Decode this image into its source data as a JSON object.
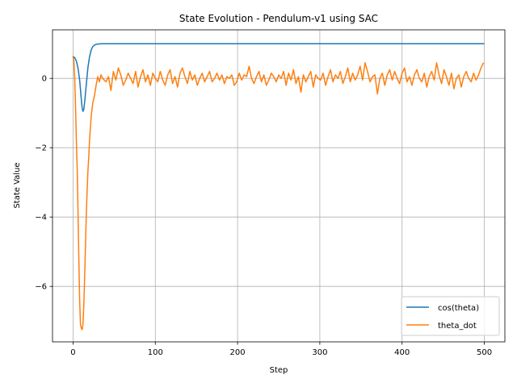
{
  "chart_data": {
    "type": "line",
    "title": "State Evolution - Pendulum-v1 using SAC",
    "xlabel": "Step",
    "ylabel": "State Value",
    "xlim": [
      -25,
      525
    ],
    "ylim": [
      -7.6,
      1.4
    ],
    "xticks": [
      0,
      100,
      200,
      300,
      400,
      500
    ],
    "yticks": [
      -6,
      -4,
      -2,
      0
    ],
    "ytick_labels": [
      "−6",
      "−4",
      "−2",
      "0"
    ],
    "grid": true,
    "legend": "lower-right",
    "series": [
      {
        "name": "cos(theta)",
        "color": "#1f77b4",
        "x": [
          0,
          2,
          4,
          6,
          8,
          10,
          11,
          12,
          13,
          14,
          16,
          18,
          20,
          22,
          24,
          26,
          28,
          30,
          35,
          40,
          50,
          100,
          200,
          300,
          400,
          500
        ],
        "y": [
          0.62,
          0.6,
          0.5,
          0.3,
          -0.05,
          -0.6,
          -0.85,
          -0.95,
          -0.9,
          -0.7,
          -0.2,
          0.3,
          0.62,
          0.82,
          0.92,
          0.96,
          0.98,
          0.99,
          1.0,
          1.0,
          1.0,
          1.0,
          1.0,
          1.0,
          1.0,
          1.0
        ]
      },
      {
        "name": "theta_dot",
        "color": "#ff7f0e",
        "x": [
          0,
          1,
          2,
          3,
          4,
          5,
          6,
          7,
          8,
          9,
          10,
          11,
          12,
          13,
          14,
          15,
          16,
          17,
          18,
          19,
          20,
          22,
          24,
          26,
          28,
          30,
          32,
          34,
          36,
          38,
          40,
          43,
          46,
          49,
          52,
          55,
          58,
          61,
          64,
          67,
          70,
          73,
          76,
          79,
          82,
          85,
          88,
          91,
          94,
          97,
          100,
          103,
          106,
          109,
          112,
          115,
          118,
          121,
          124,
          127,
          130,
          133,
          136,
          139,
          142,
          145,
          148,
          151,
          154,
          157,
          160,
          163,
          166,
          169,
          172,
          175,
          178,
          181,
          184,
          187,
          190,
          193,
          196,
          199,
          202,
          205,
          208,
          211,
          214,
          217,
          220,
          223,
          226,
          229,
          232,
          235,
          238,
          241,
          244,
          247,
          250,
          253,
          256,
          259,
          262,
          265,
          268,
          271,
          274,
          277,
          280,
          283,
          286,
          289,
          292,
          295,
          298,
          301,
          304,
          307,
          310,
          313,
          316,
          319,
          322,
          325,
          328,
          331,
          334,
          337,
          340,
          343,
          346,
          349,
          352,
          355,
          358,
          361,
          364,
          367,
          370,
          373,
          376,
          379,
          382,
          385,
          388,
          391,
          394,
          397,
          400,
          403,
          406,
          409,
          412,
          415,
          418,
          421,
          424,
          427,
          430,
          433,
          436,
          439,
          442,
          445,
          448,
          451,
          454,
          457,
          460,
          463,
          466,
          469,
          472,
          475,
          478,
          481,
          484,
          487,
          490,
          493,
          496,
          499
        ],
        "y": [
          0.65,
          0.5,
          0.0,
          -0.8,
          -1.8,
          -2.6,
          -3.8,
          -5.2,
          -6.4,
          -7.1,
          -7.2,
          -7.25,
          -7.1,
          -6.6,
          -5.8,
          -4.9,
          -4.0,
          -3.3,
          -2.7,
          -2.3,
          -1.8,
          -1.1,
          -0.7,
          -0.5,
          -0.2,
          0.05,
          -0.1,
          0.1,
          0.0,
          -0.05,
          -0.1,
          0.05,
          -0.35,
          0.2,
          -0.05,
          0.3,
          0.1,
          -0.2,
          -0.05,
          0.15,
          0.0,
          -0.15,
          0.2,
          -0.25,
          0.05,
          0.25,
          -0.1,
          0.1,
          -0.2,
          0.15,
          0.0,
          -0.1,
          0.2,
          -0.05,
          -0.2,
          0.1,
          0.25,
          -0.15,
          0.05,
          -0.25,
          0.15,
          0.3,
          0.05,
          -0.15,
          0.2,
          -0.05,
          0.1,
          -0.2,
          0.0,
          0.15,
          -0.1,
          0.05,
          0.2,
          -0.1,
          0.0,
          0.15,
          -0.05,
          0.1,
          -0.15,
          0.05,
          0.0,
          0.1,
          -0.2,
          -0.1,
          0.15,
          -0.05,
          0.1,
          0.05,
          0.35,
          0.0,
          -0.15,
          0.05,
          0.2,
          -0.1,
          0.1,
          -0.2,
          -0.05,
          0.15,
          0.05,
          -0.1,
          0.1,
          0.0,
          0.2,
          -0.2,
          0.15,
          -0.05,
          0.25,
          -0.15,
          0.05,
          -0.4,
          0.1,
          -0.1,
          0.05,
          0.2,
          -0.25,
          0.1,
          0.0,
          -0.05,
          0.15,
          -0.2,
          0.05,
          0.25,
          -0.1,
          0.1,
          0.0,
          0.2,
          -0.15,
          0.05,
          0.3,
          -0.1,
          0.15,
          -0.05,
          0.1,
          0.35,
          -0.05,
          0.45,
          0.2,
          -0.1,
          0.05,
          0.1,
          -0.45,
          0.0,
          0.15,
          -0.2,
          0.1,
          0.25,
          -0.05,
          0.2,
          0.0,
          -0.15,
          0.15,
          0.3,
          -0.1,
          0.05,
          -0.2,
          0.1,
          0.25,
          0.0,
          -0.1,
          0.15,
          -0.25,
          0.05,
          0.2,
          -0.05,
          0.45,
          0.1,
          -0.15,
          0.25,
          0.05,
          -0.2,
          0.15,
          -0.3,
          0.0,
          0.1,
          -0.25,
          0.05,
          0.2,
          0.0,
          -0.1,
          0.15,
          -0.05,
          0.1,
          0.3,
          0.45
        ]
      }
    ]
  }
}
